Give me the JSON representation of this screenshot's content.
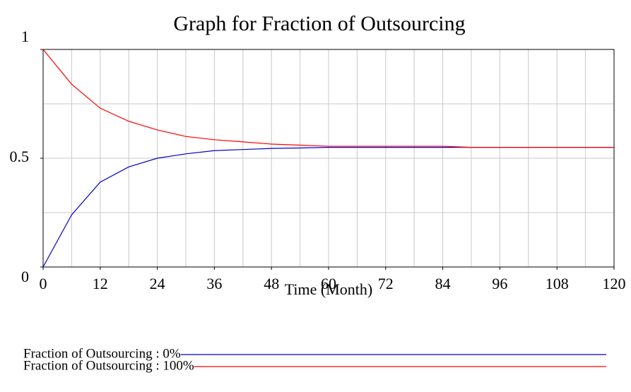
{
  "chart_data": {
    "type": "line",
    "title": "Graph for Fraction of Outsourcing",
    "x_label": "Time (Month)",
    "x": [
      0,
      6,
      12,
      18,
      24,
      30,
      36,
      42,
      48,
      54,
      60,
      66,
      72,
      78,
      84,
      90,
      96,
      102,
      108,
      114,
      120
    ],
    "series": [
      {
        "name": "Fraction of Outsourcing : 0%",
        "color": "#0000cc",
        "values": [
          0,
          0.24,
          0.39,
          0.46,
          0.5,
          0.52,
          0.535,
          0.54,
          0.545,
          0.547,
          0.55,
          0.55,
          0.55,
          0.55,
          0.55,
          0.55,
          0.55,
          0.55,
          0.55,
          0.55,
          0.55
        ]
      },
      {
        "name": "Fraction of Outsourcing : 100%",
        "color": "#ff0000",
        "values": [
          1,
          0.84,
          0.73,
          0.67,
          0.63,
          0.6,
          0.585,
          0.575,
          0.565,
          0.56,
          0.555,
          0.555,
          0.555,
          0.555,
          0.555,
          0.55,
          0.55,
          0.55,
          0.55,
          0.55,
          0.55
        ]
      }
    ],
    "xlim": [
      0,
      120
    ],
    "xticks": [
      0,
      12,
      24,
      36,
      48,
      60,
      72,
      84,
      96,
      108,
      120
    ],
    "ylim": [
      0,
      1
    ],
    "yticks": [
      0,
      0.5,
      1
    ],
    "xgrid": [
      0,
      6,
      12,
      18,
      24,
      30,
      36,
      42,
      48,
      54,
      60,
      66,
      72,
      78,
      84,
      90,
      96,
      102,
      108,
      114,
      120
    ],
    "ygrid": [
      0,
      0.25,
      0.5,
      0.75,
      1
    ]
  }
}
